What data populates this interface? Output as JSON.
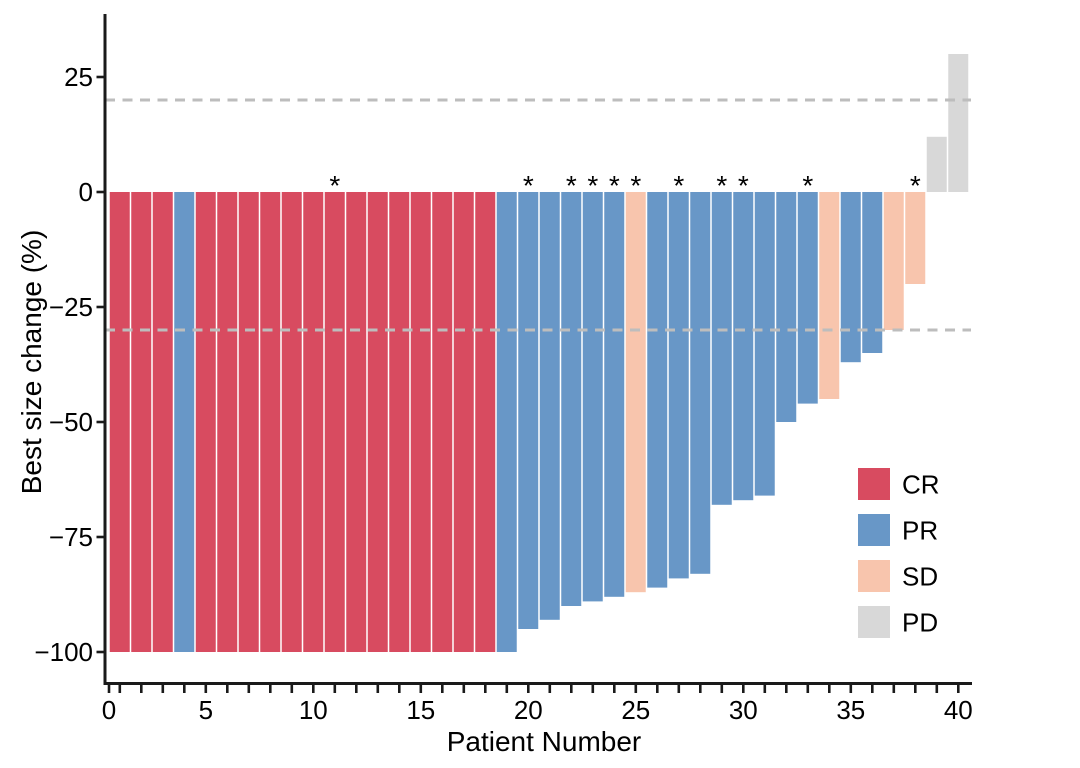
{
  "chart_data": {
    "type": "bar",
    "variant": "waterfall",
    "title": "",
    "xlabel": "Patient Number",
    "ylabel": "Best size change (%)",
    "x_axis": {
      "min": 0,
      "max": 40,
      "major_ticks": [
        0,
        5,
        10,
        15,
        20,
        25,
        30,
        35,
        40
      ],
      "minor_ticks_every_patient": true
    },
    "y_axis": {
      "ticks": [
        25,
        0,
        -25,
        -50,
        -75,
        -100
      ],
      "tick_labels": [
        "25",
        "0",
        "−25",
        "−50",
        "−75",
        "−100"
      ],
      "range": [
        -107,
        39
      ]
    },
    "reference_lines": [
      {
        "value": 20,
        "style": "dashed",
        "color": "#BDBDBD"
      },
      {
        "value": -30,
        "style": "dashed",
        "color": "#BDBDBD"
      }
    ],
    "grid": "off",
    "patients": [
      1,
      2,
      3,
      4,
      5,
      6,
      7,
      8,
      9,
      10,
      11,
      12,
      13,
      14,
      15,
      16,
      17,
      18,
      19,
      20,
      21,
      22,
      23,
      24,
      25,
      26,
      27,
      28,
      29,
      30,
      31,
      32,
      33,
      34,
      35,
      36,
      37,
      38,
      39,
      40
    ],
    "values": [
      -100,
      -100,
      -100,
      -100,
      -100,
      -100,
      -100,
      -100,
      -100,
      -100,
      -100,
      -100,
      -100,
      -100,
      -100,
      -100,
      -100,
      -100,
      -100,
      -95,
      -93,
      -90,
      -89,
      -88,
      -87,
      -86,
      -84,
      -83,
      -68,
      -67,
      -66,
      -50,
      -46,
      -45,
      -37,
      -35,
      -30,
      -20,
      12,
      30
    ],
    "response": [
      "CR",
      "CR",
      "CR",
      "PR",
      "CR",
      "CR",
      "CR",
      "CR",
      "CR",
      "CR",
      "CR",
      "CR",
      "CR",
      "CR",
      "CR",
      "CR",
      "CR",
      "CR",
      "PR",
      "PR",
      "PR",
      "PR",
      "PR",
      "PR",
      "SD",
      "PR",
      "PR",
      "PR",
      "PR",
      "PR",
      "PR",
      "PR",
      "PR",
      "SD",
      "PR",
      "PR",
      "SD",
      "SD",
      "PD",
      "PD"
    ],
    "asterisk_patients": [
      11,
      20,
      22,
      23,
      24,
      25,
      27,
      29,
      30,
      33,
      38
    ],
    "asterisk_symbol": "*",
    "legend": {
      "position": "inside-bottom-right",
      "entries": [
        {
          "label": "CR",
          "color": "#D84B60"
        },
        {
          "label": "PR",
          "color": "#6897C7"
        },
        {
          "label": "SD",
          "color": "#F8C5AD"
        },
        {
          "label": "PD",
          "color": "#D8D8D8"
        }
      ]
    },
    "colors": {
      "axis": "#1a1a1a",
      "text": "#000000",
      "dashed_line": "#BDBDBD",
      "background": "#ffffff"
    }
  }
}
